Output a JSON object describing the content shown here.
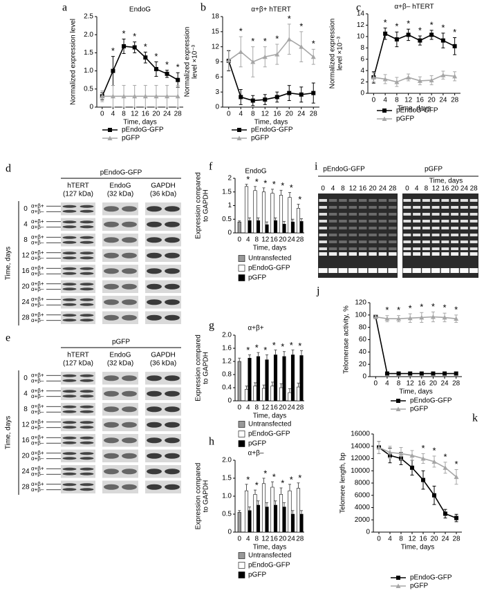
{
  "chart_data": [
    {
      "type": "line",
      "label": "a",
      "title": "EndoG",
      "ylabel": "Normalized expression level",
      "xlabel": "Time, days",
      "x": [
        0,
        4,
        8,
        12,
        16,
        20,
        24,
        28
      ],
      "xlim": [
        -2,
        30
      ],
      "xticks": [
        0,
        4,
        8,
        12,
        16,
        20,
        24,
        28
      ],
      "ylim": [
        0,
        2.5
      ],
      "yticks": [
        0,
        0.5,
        {
          "value": 1,
          "label": "1.0"
        },
        1.5,
        {
          "value": 2,
          "label": "2.0"
        },
        2.5
      ],
      "series": [
        {
          "name": "pEndoG-GFP",
          "color": "#000000",
          "marker": "square",
          "values": [
            0.3,
            1.0,
            1.68,
            1.65,
            1.37,
            1.05,
            0.92,
            0.75
          ],
          "errors": [
            0.1,
            0.4,
            0.2,
            0.15,
            0.15,
            0.2,
            0.1,
            0.2
          ]
        },
        {
          "name": "pGFP",
          "color": "#a6a6a6",
          "marker": "triangle",
          "values": [
            0.3,
            0.3,
            0.3,
            0.3,
            0.3,
            0.3,
            0.3,
            0.3
          ],
          "errors": [
            0.15,
            0.3,
            0.3,
            0.3,
            0.3,
            0.3,
            0.3,
            0.3
          ]
        }
      ],
      "annotations": [
        {
          "x": 4,
          "text": "*"
        },
        {
          "x": 8,
          "text": "*"
        },
        {
          "x": 12,
          "text": "*"
        },
        {
          "x": 16,
          "text": "*"
        },
        {
          "x": 20,
          "text": "*"
        },
        {
          "x": 24,
          "text": "*"
        },
        {
          "x": 28,
          "text": "*"
        }
      ]
    },
    {
      "type": "line",
      "label": "b",
      "title": "α+β+ hTERT",
      "ylabel": [
        "Normalized expression",
        "level ×10⁻³"
      ],
      "xlabel": "Time, days",
      "x": [
        0,
        4,
        8,
        12,
        16,
        20,
        24,
        28
      ],
      "xlim": [
        -2,
        30
      ],
      "xticks": [
        0,
        4,
        8,
        12,
        16,
        20,
        24,
        28
      ],
      "ylim": [
        0,
        18
      ],
      "yticks": [
        0,
        3,
        6,
        9,
        12,
        15,
        18
      ],
      "series": [
        {
          "name": "pEndoG-GFP",
          "color": "#000000",
          "marker": "square",
          "values": [
            9.2,
            2.0,
            1.3,
            1.5,
            2.0,
            2.8,
            2.5,
            2.8
          ],
          "errors": [
            2,
            1.5,
            1,
            1,
            1,
            1.5,
            1.5,
            2
          ]
        },
        {
          "name": "pGFP",
          "color": "#a6a6a6",
          "marker": "triangle",
          "values": [
            9.3,
            11,
            9,
            10,
            10.5,
            13.5,
            12,
            10
          ],
          "errors": [
            2,
            3,
            3,
            2,
            2,
            3,
            3,
            1.5
          ]
        }
      ],
      "annotations": [
        {
          "x": 4,
          "text": "*"
        },
        {
          "x": 8,
          "text": "*"
        },
        {
          "x": 12,
          "text": "*"
        },
        {
          "x": 16,
          "text": "*"
        },
        {
          "x": 20,
          "text": "*"
        },
        {
          "x": 24,
          "text": "*"
        },
        {
          "x": 28,
          "text": "*"
        }
      ]
    },
    {
      "type": "line",
      "label": "c",
      "title": "α+β– hTERT",
      "ylabel": [
        "Normalized expression",
        "level ×10⁻³"
      ],
      "xlabel": "Time, days",
      "x": [
        0,
        4,
        8,
        12,
        16,
        20,
        24,
        28
      ],
      "xlim": [
        -2,
        30
      ],
      "xticks": [
        0,
        4,
        8,
        12,
        16,
        20,
        24,
        28
      ],
      "ylim": [
        0,
        14
      ],
      "yticks": [
        0,
        2,
        4,
        6,
        8,
        10,
        12,
        14
      ],
      "series": [
        {
          "name": "pEndoG-GFP",
          "color": "#000000",
          "marker": "square",
          "values": [
            2.8,
            10.5,
            9.5,
            10.3,
            9.3,
            10.3,
            9.3,
            8.3
          ],
          "errors": [
            1,
            1,
            1.3,
            1,
            0.8,
            0.8,
            1.3,
            1.5
          ]
        },
        {
          "name": "pGFP",
          "color": "#a6a6a6",
          "marker": "triangle",
          "values": [
            2.8,
            2.5,
            2.0,
            2.8,
            2.2,
            2.3,
            3.2,
            3.0
          ],
          "errors": [
            0.8,
            0.8,
            0.8,
            0.6,
            0.7,
            0.8,
            0.7,
            0.8
          ]
        }
      ],
      "annotations": [
        {
          "x": 4,
          "text": "*"
        },
        {
          "x": 8,
          "text": "*"
        },
        {
          "x": 12,
          "text": "*"
        },
        {
          "x": 16,
          "text": "*"
        },
        {
          "x": 20,
          "text": "*"
        },
        {
          "x": 24,
          "text": "*"
        },
        {
          "x": 28,
          "text": "*"
        }
      ]
    },
    {
      "type": "bar",
      "label": "f",
      "title": "EndoG",
      "ylabel": [
        "Expression compared",
        "to GAPDH"
      ],
      "xlabel": "Time, days",
      "categories": [
        0,
        4,
        8,
        12,
        16,
        20,
        24,
        28
      ],
      "ylim": [
        0,
        2
      ],
      "yticks": [
        0,
        0.5,
        1,
        1.5,
        2
      ],
      "series": [
        {
          "name": "Untransfected",
          "color": "#999999",
          "values": [
            0.4,
            null,
            null,
            null,
            null,
            null,
            null,
            null
          ],
          "errors": [
            0.04,
            null,
            null,
            null,
            null,
            null,
            null,
            null
          ]
        },
        {
          "name": "pEndoG-GFP",
          "color": "#ffffff",
          "values": [
            null,
            1.7,
            1.55,
            1.5,
            1.45,
            1.38,
            1.3,
            0.9
          ],
          "errors": [
            null,
            0.08,
            0.15,
            0.15,
            0.15,
            0.18,
            0.18,
            0.15
          ]
        },
        {
          "name": "pGFP",
          "color": "#000000",
          "values": [
            null,
            0.45,
            0.45,
            0.3,
            0.45,
            0.32,
            0.4,
            0.42
          ],
          "errors": [
            null,
            0.1,
            0.1,
            0.1,
            0.1,
            0.1,
            0.1,
            0.1
          ]
        }
      ],
      "annotations": [
        {
          "x": 4,
          "text": "*"
        },
        {
          "x": 8,
          "text": "*"
        },
        {
          "x": 12,
          "text": "*"
        },
        {
          "x": 16,
          "text": "*"
        },
        {
          "x": 20,
          "text": "*"
        },
        {
          "x": 24,
          "text": "*"
        },
        {
          "x": 28,
          "text": "*"
        }
      ]
    },
    {
      "type": "bar",
      "label": "g",
      "title": "α+β+",
      "ylabel": [
        "Expression compared",
        "to GAPDH"
      ],
      "xlabel": "Time, days",
      "categories": [
        0,
        4,
        8,
        12,
        16,
        20,
        24,
        28
      ],
      "ylim": [
        0,
        2
      ],
      "yticks": [
        0,
        0.4,
        0.8,
        1.2,
        1.6,
        {
          "value": 2,
          "label": "2.0"
        }
      ],
      "series": [
        {
          "name": "Untransfected",
          "color": "#999999",
          "values": [
            1.2,
            null,
            null,
            null,
            null,
            null,
            null,
            null
          ],
          "errors": [
            0.1,
            null,
            null,
            null,
            null,
            null,
            null,
            null
          ]
        },
        {
          "name": "pEndoG-GFP",
          "color": "#ffffff",
          "values": [
            null,
            0.35,
            0.45,
            0.38,
            0.45,
            0.4,
            0.25,
            0.42
          ],
          "errors": [
            null,
            0.1,
            0.1,
            0.1,
            0.12,
            0.12,
            0.12,
            0.12
          ]
        },
        {
          "name": "pGFP",
          "color": "#000000",
          "values": [
            null,
            1.3,
            1.35,
            1.25,
            1.4,
            1.35,
            1.4,
            1.38
          ],
          "errors": [
            null,
            0.1,
            0.12,
            0.15,
            0.15,
            0.15,
            0.15,
            0.15
          ]
        }
      ],
      "annotations": [
        {
          "x": 4,
          "text": "*"
        },
        {
          "x": 8,
          "text": "*"
        },
        {
          "x": 12,
          "text": "*"
        },
        {
          "x": 16,
          "text": "*"
        },
        {
          "x": 20,
          "text": "*"
        },
        {
          "x": 24,
          "text": "*"
        },
        {
          "x": 28,
          "text": "*"
        }
      ]
    },
    {
      "type": "bar",
      "label": "h",
      "title": "α+β–",
      "ylabel": [
        "Expression compared",
        "to GAPDH"
      ],
      "xlabel": "Time, days",
      "categories": [
        0,
        4,
        8,
        12,
        16,
        20,
        24,
        28
      ],
      "ylim": [
        0,
        2
      ],
      "yticks": [
        0,
        0.5,
        {
          "value": 1,
          "label": "1.0"
        },
        1.5,
        {
          "value": 2,
          "label": "2.0"
        }
      ],
      "series": [
        {
          "name": "Untransfected",
          "color": "#999999",
          "values": [
            0.55,
            null,
            null,
            null,
            null,
            null,
            null,
            null
          ],
          "errors": [
            0.05,
            null,
            null,
            null,
            null,
            null,
            null,
            null
          ]
        },
        {
          "name": "pEndoG-GFP",
          "color": "#ffffff",
          "values": [
            null,
            1.15,
            1.05,
            1.35,
            1.25,
            1.05,
            1.15,
            1.22
          ],
          "errors": [
            null,
            0.18,
            0.12,
            0.15,
            0.15,
            0.18,
            0.18,
            0.15
          ]
        },
        {
          "name": "pGFP",
          "color": "#000000",
          "values": [
            null,
            0.6,
            0.75,
            0.7,
            0.75,
            0.7,
            0.5,
            0.5
          ],
          "errors": [
            null,
            0.1,
            0.12,
            0.12,
            0.12,
            0.12,
            0.1,
            0.1
          ]
        }
      ],
      "annotations": [
        {
          "x": 4,
          "text": "*"
        },
        {
          "x": 8,
          "text": "*"
        },
        {
          "x": 12,
          "text": "*"
        },
        {
          "x": 16,
          "text": "*"
        },
        {
          "x": 20,
          "text": "*"
        },
        {
          "x": 24,
          "text": "*"
        },
        {
          "x": 28,
          "text": "*"
        }
      ]
    },
    {
      "type": "line",
      "label": "j",
      "ylabel": "Telomerase activity, %",
      "xlabel": "Time, days",
      "x": [
        0,
        4,
        8,
        12,
        16,
        20,
        24,
        28
      ],
      "xlim": [
        -2,
        30
      ],
      "xticks": [
        0,
        4,
        8,
        12,
        16,
        20,
        24,
        28
      ],
      "ylim": [
        0,
        120
      ],
      "yticks": [
        0,
        20,
        40,
        60,
        80,
        100,
        120
      ],
      "series": [
        {
          "name": "pEndoG-GFP",
          "color": "#000000",
          "marker": "square",
          "values": [
            97,
            5,
            5,
            5,
            5,
            5,
            5,
            5
          ],
          "errors": [
            3,
            2,
            2,
            2,
            2,
            2,
            2,
            2
          ]
        },
        {
          "name": "pGFP",
          "color": "#a6a6a6",
          "marker": "triangle",
          "values": [
            97,
            94,
            94,
            95,
            96,
            97,
            96,
            94
          ],
          "errors": [
            3,
            5,
            5,
            7,
            8,
            8,
            7,
            6
          ]
        }
      ],
      "annotations": [
        {
          "x": 4,
          "text": "*"
        },
        {
          "x": 8,
          "text": "*"
        },
        {
          "x": 12,
          "text": "*"
        },
        {
          "x": 16,
          "text": "*"
        },
        {
          "x": 20,
          "text": "*"
        },
        {
          "x": 24,
          "text": "*"
        },
        {
          "x": 28,
          "text": "*"
        }
      ]
    },
    {
      "type": "line",
      "label": "k",
      "ylabel": "Telomere length, bp",
      "xlabel": "Time, days",
      "x": [
        0,
        4,
        8,
        12,
        16,
        20,
        24,
        28
      ],
      "xlim": [
        -2,
        30
      ],
      "xticks": [
        0,
        4,
        8,
        12,
        16,
        20,
        24,
        28
      ],
      "ylim": [
        0,
        16000
      ],
      "yticks": [
        0,
        2000,
        4000,
        6000,
        8000,
        10000,
        12000,
        14000,
        16000
      ],
      "series": [
        {
          "name": "pEndoG-GFP",
          "color": "#000000",
          "marker": "square",
          "values": [
            13800,
            12500,
            12000,
            10500,
            8500,
            6000,
            3000,
            2300
          ],
          "errors": [
            1000,
            1200,
            1000,
            1200,
            1500,
            1500,
            700,
            600
          ]
        },
        {
          "name": "pGFP",
          "color": "#a6a6a6",
          "marker": "triangle",
          "values": [
            13800,
            13000,
            12800,
            12500,
            12000,
            11500,
            10500,
            9000
          ],
          "errors": [
            1000,
            1000,
            1000,
            800,
            800,
            900,
            900,
            1200
          ]
        }
      ],
      "annotations": [
        {
          "x": 16,
          "text": "*"
        },
        {
          "x": 20,
          "text": "*"
        },
        {
          "x": 24,
          "text": "*"
        },
        {
          "x": 28,
          "text": "*"
        }
      ]
    }
  ],
  "blots": [
    {
      "label": "d",
      "construct": "pEndoG-GFP",
      "axis_label": "Time, days",
      "columns": [
        {
          "name": "hTERT",
          "size": "(127 kDa)"
        },
        {
          "name": "EndoG",
          "size": "(32 kDa)"
        },
        {
          "name": "GAPDH",
          "size": "(36 kDa)"
        }
      ],
      "rows": [
        0,
        4,
        8,
        12,
        16,
        20,
        24,
        28
      ],
      "bands": [
        "α+β+",
        "α+β–"
      ]
    },
    {
      "label": "e",
      "construct": "pGFP",
      "axis_label": "Time, days",
      "columns": [
        {
          "name": "hTERT",
          "size": "(127 kDa)"
        },
        {
          "name": "EndoG",
          "size": "(32 kDa)"
        },
        {
          "name": "GAPDH",
          "size": "(36 kDa)"
        }
      ],
      "rows": [
        0,
        4,
        8,
        12,
        16,
        20,
        24,
        28
      ],
      "bands": [
        "α+β+",
        "α+β–"
      ]
    }
  ],
  "gel": {
    "label": "i",
    "axis_label": "Time, days",
    "groups": [
      {
        "name": "pEndoG-GFP",
        "lanes": [
          0,
          4,
          8,
          12,
          16,
          20,
          24,
          28
        ]
      },
      {
        "name": "pGFP",
        "lanes": [
          0,
          4,
          8,
          12,
          16,
          20,
          24,
          28
        ]
      }
    ]
  }
}
